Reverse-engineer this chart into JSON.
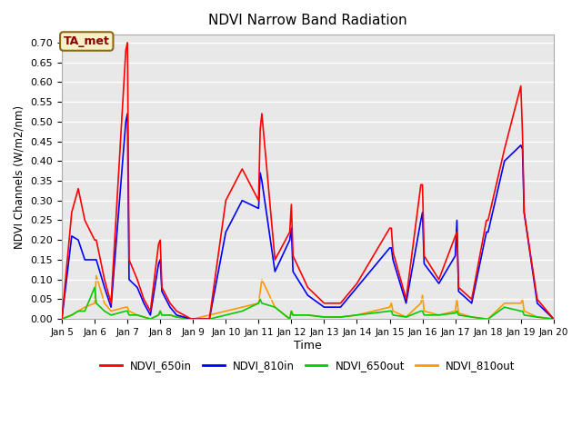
{
  "title": "NDVI Narrow Band Radiation",
  "xlabel": "Time",
  "ylabel": "NDVI Channels (W/m2/nm)",
  "annotation": "TA_met",
  "ylim": [
    0.0,
    0.72
  ],
  "yticks": [
    0.0,
    0.05,
    0.1,
    0.15,
    0.2,
    0.25,
    0.3,
    0.35,
    0.4,
    0.45,
    0.5,
    0.55,
    0.6,
    0.65,
    0.7
  ],
  "x_labels": [
    "Jan 5",
    "Jan 6",
    "Jan 7",
    "Jan 8",
    "Jan 9",
    "Jan 10",
    "Jan 11",
    "Jan 12",
    "Jan 13",
    "Jan 14",
    "Jan 15",
    "Jan 16",
    "Jan 17",
    "Jan 18",
    "Jan 19",
    "Jan 20"
  ],
  "colors": {
    "NDVI_650in": "#ff0000",
    "NDVI_810in": "#0000ff",
    "NDVI_650out": "#00cc00",
    "NDVI_810out": "#ff9900"
  },
  "background_color": "#e8e8e8",
  "grid_color": "#ffffff",
  "time_x": [
    5.0,
    5.3,
    5.5,
    5.7,
    6.0,
    6.05,
    6.3,
    6.5,
    6.95,
    7.0,
    7.05,
    7.3,
    7.5,
    7.7,
    7.95,
    8.0,
    8.05,
    8.3,
    8.5,
    8.95,
    9.0,
    9.5,
    10.0,
    10.5,
    11.0,
    11.05,
    11.1,
    11.5,
    11.95,
    12.0,
    12.05,
    12.5,
    13.0,
    13.5,
    14.0,
    14.5,
    15.0,
    15.05,
    15.1,
    15.5,
    15.95,
    16.0,
    16.05,
    16.5,
    17.0,
    17.05,
    17.1,
    17.5,
    17.95,
    18.0,
    18.5,
    19.0,
    19.05,
    19.1,
    19.5,
    20.0
  ],
  "NDVI_650in": [
    0.0,
    0.27,
    0.33,
    0.25,
    0.2,
    0.2,
    0.1,
    0.04,
    0.68,
    0.7,
    0.15,
    0.1,
    0.05,
    0.02,
    0.19,
    0.2,
    0.08,
    0.04,
    0.02,
    0.0,
    0.0,
    0.0,
    0.3,
    0.38,
    0.3,
    0.48,
    0.52,
    0.15,
    0.22,
    0.29,
    0.16,
    0.08,
    0.04,
    0.04,
    0.09,
    0.16,
    0.23,
    0.23,
    0.17,
    0.05,
    0.34,
    0.34,
    0.16,
    0.1,
    0.21,
    0.22,
    0.08,
    0.05,
    0.25,
    0.25,
    0.43,
    0.59,
    0.47,
    0.27,
    0.05,
    0.0
  ],
  "NDVI_810in": [
    0.0,
    0.21,
    0.2,
    0.15,
    0.15,
    0.15,
    0.08,
    0.03,
    0.5,
    0.52,
    0.1,
    0.08,
    0.04,
    0.01,
    0.14,
    0.15,
    0.07,
    0.03,
    0.01,
    0.0,
    0.0,
    0.0,
    0.22,
    0.3,
    0.28,
    0.37,
    0.35,
    0.12,
    0.2,
    0.23,
    0.12,
    0.06,
    0.03,
    0.03,
    0.08,
    0.13,
    0.18,
    0.18,
    0.15,
    0.04,
    0.25,
    0.27,
    0.14,
    0.09,
    0.16,
    0.25,
    0.07,
    0.04,
    0.22,
    0.22,
    0.4,
    0.44,
    0.43,
    0.27,
    0.04,
    0.0
  ],
  "NDVI_650out": [
    0.0,
    0.01,
    0.02,
    0.02,
    0.08,
    0.04,
    0.02,
    0.01,
    0.02,
    0.02,
    0.01,
    0.01,
    0.005,
    0.0,
    0.01,
    0.02,
    0.01,
    0.01,
    0.005,
    0.0,
    0.0,
    0.0,
    0.01,
    0.02,
    0.04,
    0.05,
    0.04,
    0.03,
    0.0,
    0.02,
    0.01,
    0.01,
    0.005,
    0.005,
    0.01,
    0.015,
    0.02,
    0.02,
    0.01,
    0.005,
    0.02,
    0.02,
    0.01,
    0.01,
    0.015,
    0.02,
    0.01,
    0.005,
    0.0,
    0.0,
    0.03,
    0.02,
    0.02,
    0.01,
    0.005,
    0.0
  ],
  "NDVI_810out": [
    0.0,
    0.01,
    0.02,
    0.03,
    0.04,
    0.11,
    0.04,
    0.02,
    0.03,
    0.03,
    0.02,
    0.01,
    0.005,
    0.0,
    0.01,
    0.02,
    0.01,
    0.01,
    0.005,
    0.0,
    0.0,
    0.01,
    0.02,
    0.03,
    0.04,
    0.07,
    0.1,
    0.03,
    0.0,
    0.02,
    0.01,
    0.01,
    0.005,
    0.005,
    0.01,
    0.02,
    0.03,
    0.04,
    0.02,
    0.005,
    0.04,
    0.06,
    0.02,
    0.01,
    0.02,
    0.05,
    0.015,
    0.005,
    0.0,
    0.0,
    0.04,
    0.04,
    0.05,
    0.02,
    0.005,
    0.0
  ]
}
